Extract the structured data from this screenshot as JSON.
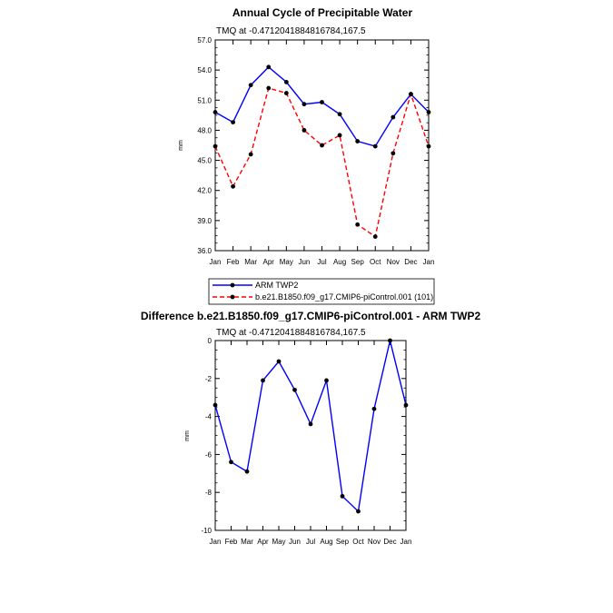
{
  "chart_data": [
    {
      "type": "line",
      "title": "Annual Cycle of Precipitable Water",
      "subtitle": "TMQ at -0.4712041884816784,167.5",
      "xlabel": "",
      "ylabel": "mm",
      "categories": [
        "Jan",
        "Feb",
        "Mar",
        "Apr",
        "May",
        "Jun",
        "Jul",
        "Aug",
        "Sep",
        "Oct",
        "Nov",
        "Dec",
        "Jan"
      ],
      "ylim": [
        36.0,
        57.0
      ],
      "yticks": [
        "36.0",
        "39.0",
        "42.0",
        "45.0",
        "48.0",
        "51.0",
        "54.0",
        "57.0"
      ],
      "series": [
        {
          "name": "ARM TWP2",
          "color": "#0000ff",
          "dash": "solid",
          "values": [
            49.8,
            48.8,
            52.5,
            54.3,
            52.8,
            50.6,
            50.8,
            49.6,
            46.9,
            46.4,
            49.3,
            51.6,
            49.8
          ]
        },
        {
          "name": "b.e21.B1850.f09_g17.CMIP6-piControl.001 (101)",
          "color": "#ff0000",
          "dash": "dashed",
          "values": [
            46.4,
            42.4,
            45.6,
            52.2,
            51.7,
            48.0,
            46.5,
            47.5,
            38.6,
            37.4,
            45.7,
            51.6,
            46.4
          ]
        }
      ],
      "legend": "below"
    },
    {
      "type": "line",
      "title": "Difference b.e21.B1850.f09_g17.CMIP6-piControl.001 - ARM TWP2",
      "subtitle": "TMQ at -0.4712041884816784,167.5",
      "xlabel": "",
      "ylabel": "mm",
      "categories": [
        "Jan",
        "Feb",
        "Mar",
        "Apr",
        "May",
        "Jun",
        "Jul",
        "Aug",
        "Sep",
        "Oct",
        "Nov",
        "Dec",
        "Jan"
      ],
      "ylim": [
        -10,
        0
      ],
      "yticks": [
        "-10",
        "-8",
        "-6",
        "-4",
        "-2",
        "0"
      ],
      "series": [
        {
          "name": "",
          "color": "#0000ff",
          "dash": "solid",
          "values": [
            -3.4,
            -6.4,
            -6.9,
            -2.1,
            -1.1,
            -2.6,
            -4.4,
            -2.1,
            -8.2,
            -9.0,
            -3.6,
            0.0,
            -3.4
          ]
        }
      ]
    }
  ]
}
